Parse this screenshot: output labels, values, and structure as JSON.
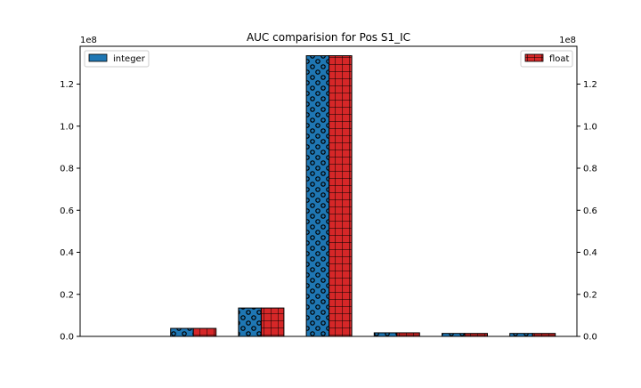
{
  "chart_data": {
    "type": "bar",
    "title": "AUC comparision for Pos S1_IC",
    "xlabel": "",
    "ylabel": "",
    "categories": [
      "",
      "",
      "",
      "",
      "",
      "",
      ""
    ],
    "series": [
      {
        "name": "integer",
        "values": [
          0,
          3800000,
          13500000,
          133500000,
          1700000,
          1400000,
          1400000
        ],
        "color": "#1f77b4",
        "hatch": "circles"
      },
      {
        "name": "float",
        "values": [
          0,
          3800000,
          13500000,
          133500000,
          1700000,
          1400000,
          1400000
        ],
        "color": "#d62728",
        "hatch": "grid"
      }
    ],
    "ylim": [
      0,
      138000000
    ],
    "left_axis": {
      "offset_label": "1e8",
      "ticks": [
        {
          "value": 0,
          "label": "0.0"
        },
        {
          "value": 20000000,
          "label": "0.2"
        },
        {
          "value": 40000000,
          "label": "0.4"
        },
        {
          "value": 60000000,
          "label": "0.6"
        },
        {
          "value": 80000000,
          "label": "0.8"
        },
        {
          "value": 100000000,
          "label": "1.0"
        },
        {
          "value": 120000000,
          "label": "1.2"
        }
      ]
    },
    "right_axis": {
      "offset_label": "1e8",
      "ticks": [
        {
          "value": 0,
          "label": "0.0"
        },
        {
          "value": 20000000,
          "label": "0.2"
        },
        {
          "value": 40000000,
          "label": "0.4"
        },
        {
          "value": 60000000,
          "label": "0.6"
        },
        {
          "value": 80000000,
          "label": "0.8"
        },
        {
          "value": 100000000,
          "label": "1.0"
        },
        {
          "value": 120000000,
          "label": "1.2"
        }
      ]
    },
    "legend": [
      {
        "label": "integer",
        "placement": "top-left"
      },
      {
        "label": "float",
        "placement": "top-right"
      }
    ],
    "grid": false
  }
}
